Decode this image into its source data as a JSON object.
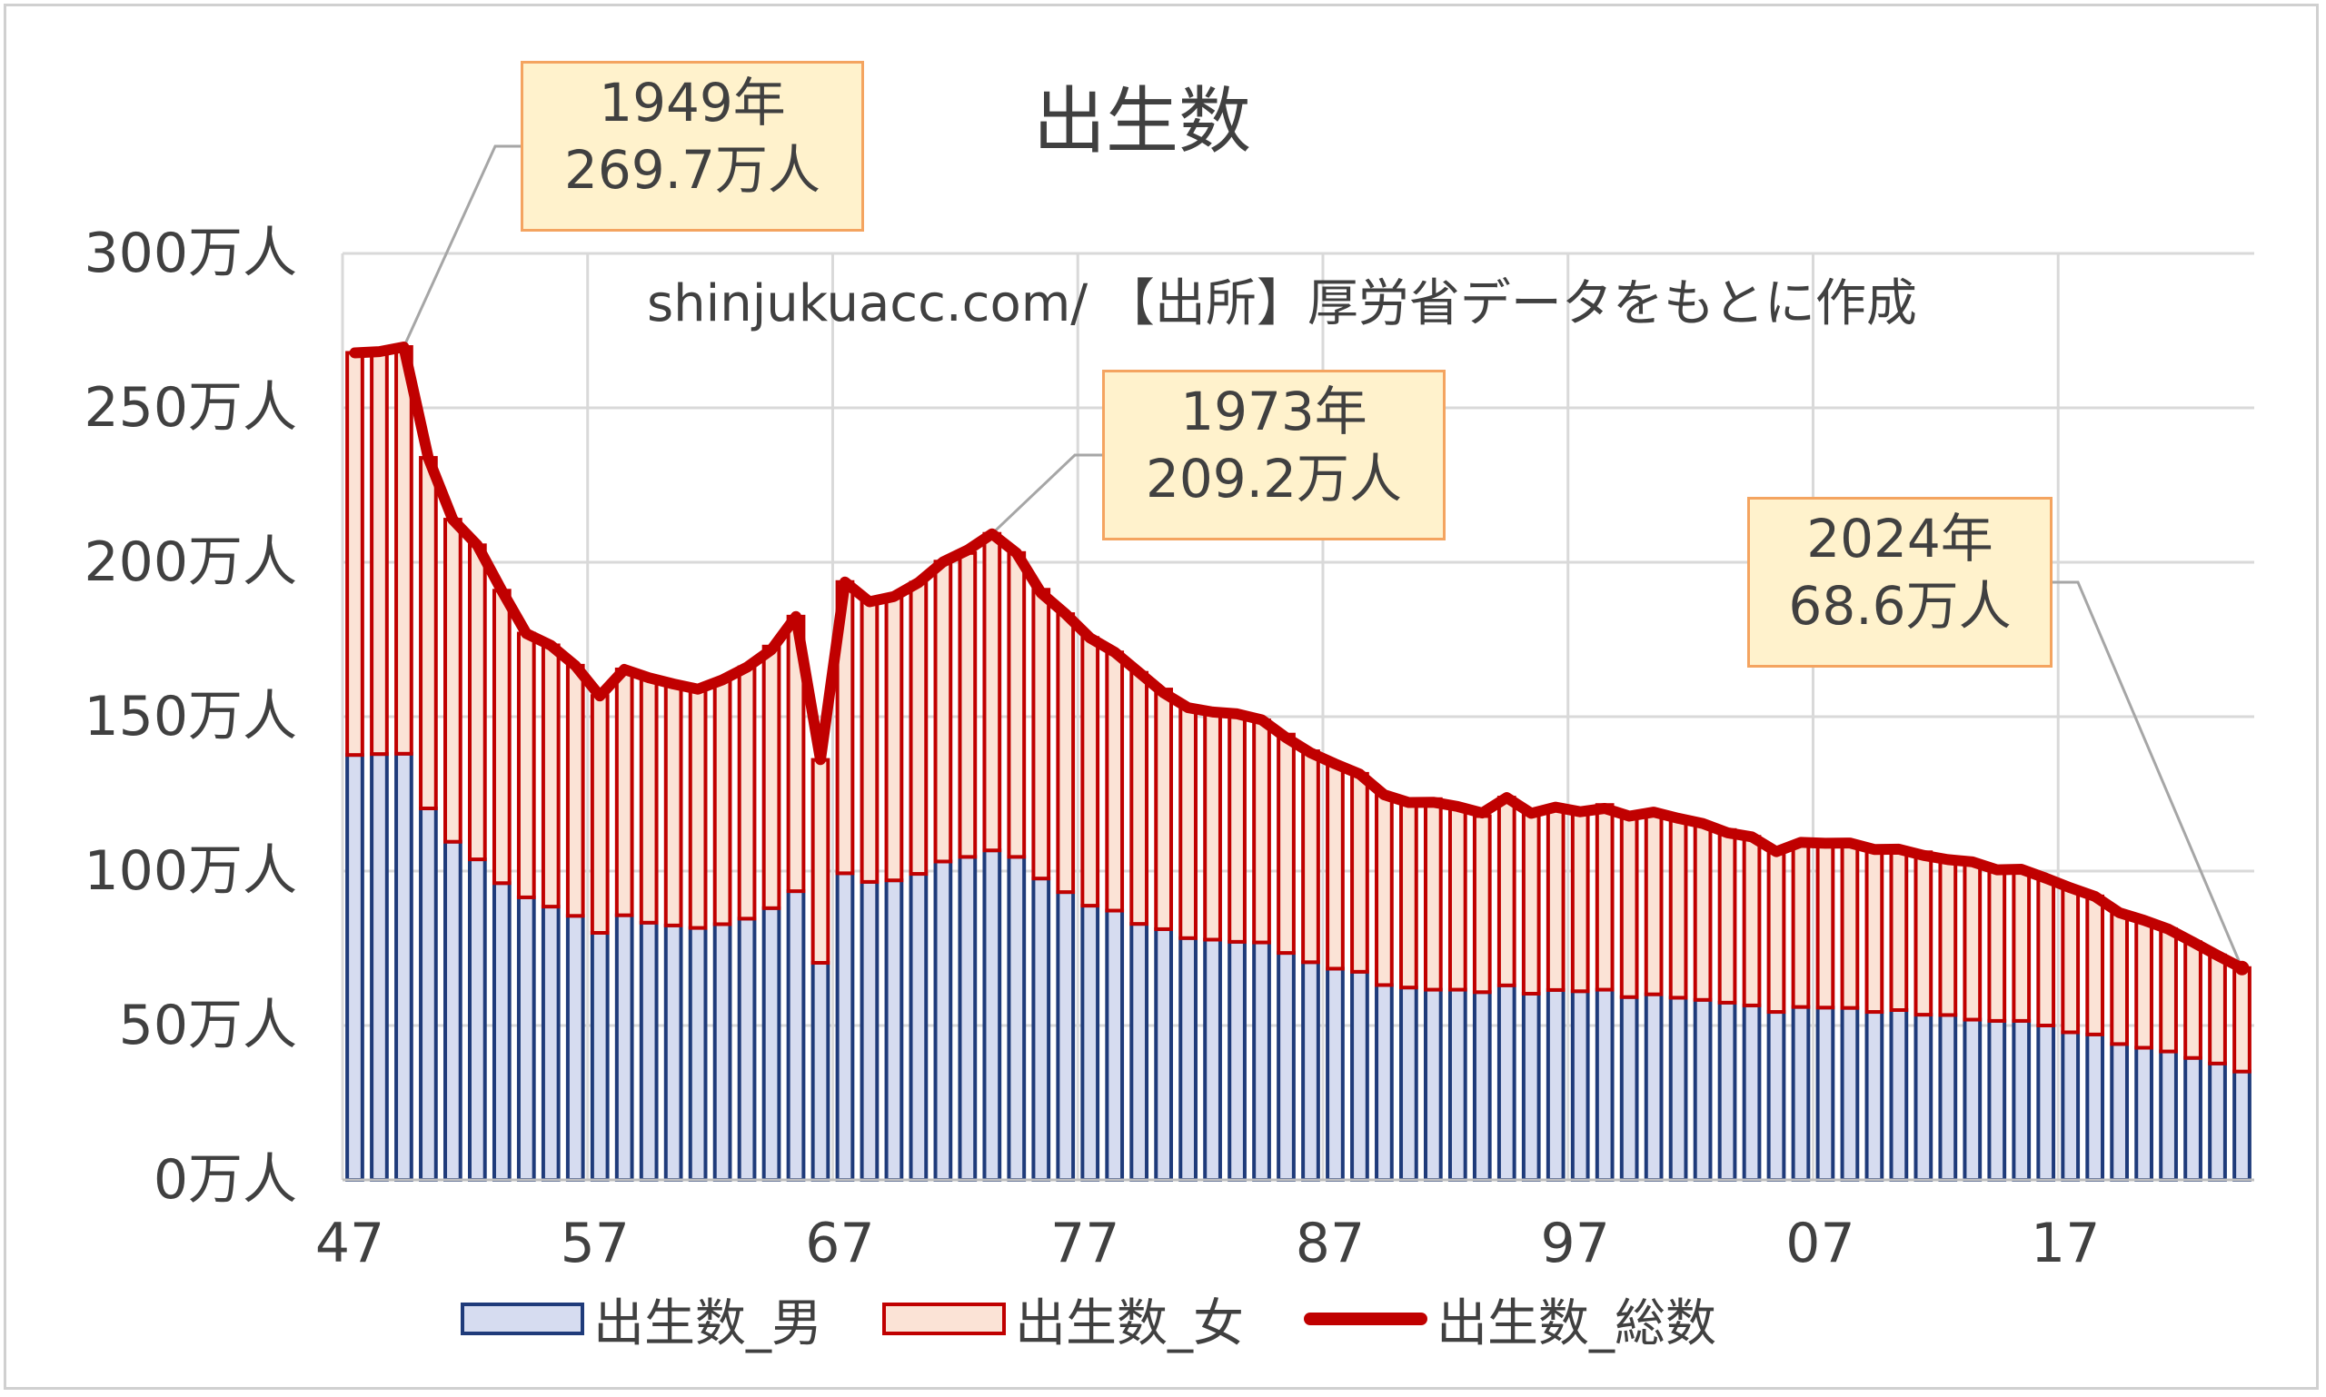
{
  "chart_data": {
    "type": "bar",
    "title": "出生数",
    "source_note": "shinjukuacc.com/ 【出所】厚労省データをもとに作成",
    "unit": "万人",
    "stacked": true,
    "x": [
      1947,
      1948,
      1949,
      1950,
      1951,
      1952,
      1953,
      1954,
      1955,
      1956,
      1957,
      1958,
      1959,
      1960,
      1961,
      1962,
      1963,
      1964,
      1965,
      1966,
      1967,
      1968,
      1969,
      1970,
      1971,
      1972,
      1973,
      1974,
      1975,
      1976,
      1977,
      1978,
      1979,
      1980,
      1981,
      1982,
      1983,
      1984,
      1985,
      1986,
      1987,
      1988,
      1989,
      1990,
      1991,
      1992,
      1993,
      1994,
      1995,
      1996,
      1997,
      1998,
      1999,
      2000,
      2001,
      2002,
      2003,
      2004,
      2005,
      2006,
      2007,
      2008,
      2009,
      2010,
      2011,
      2012,
      2013,
      2014,
      2015,
      2016,
      2017,
      2018,
      2019,
      2020,
      2021,
      2022,
      2023,
      2024
    ],
    "x_tick_values": [
      1947,
      1957,
      1967,
      1977,
      1987,
      1997,
      2007,
      2017
    ],
    "x_tick_labels": [
      "47",
      "57",
      "67",
      "77",
      "87",
      "97",
      "07",
      "17"
    ],
    "y_ticks": [
      0,
      50,
      100,
      150,
      200,
      250,
      300
    ],
    "y_tick_labels": [
      "0万人",
      "50万人",
      "100万人",
      "150万人",
      "200万人",
      "250万人",
      "300万人"
    ],
    "ylim": [
      0,
      300
    ],
    "grid": true,
    "legend_position": "bottom",
    "series": [
      {
        "name": "出生数_男",
        "type": "bar",
        "color": "#1f3b7a",
        "fill": "#d6dcf0",
        "values": [
          137.6,
          137.9,
          138.0,
          120.3,
          109.5,
          103.8,
          96.1,
          91.5,
          88.5,
          85.5,
          80.0,
          85.7,
          83.3,
          82.4,
          81.6,
          82.8,
          84.6,
          88.0,
          93.5,
          70.3,
          99.3,
          96.5,
          97.0,
          99.1,
          103.1,
          104.6,
          106.7,
          104.6,
          97.6,
          93.2,
          88.8,
          87.2,
          82.9,
          81.2,
          78.3,
          77.8,
          77.1,
          76.9,
          73.5,
          70.5,
          68.4,
          67.4,
          63.1,
          62.3,
          61.6,
          61.6,
          60.8,
          63.0,
          60.3,
          61.5,
          61.1,
          61.6,
          59.2,
          60.1,
          59.0,
          58.3,
          57.4,
          56.5,
          54.4,
          56.0,
          55.8,
          55.7,
          54.4,
          55.0,
          53.5,
          53.4,
          51.9,
          51.5,
          51.5,
          50.0,
          47.8,
          47.1,
          44.0,
          42.8,
          41.6,
          39.5,
          37.7,
          35.1
        ]
      },
      {
        "name": "出生数_女",
        "type": "bar",
        "color": "#c00000",
        "fill": "#fbe3d6",
        "values": [
          130.2,
          130.3,
          131.7,
          113.5,
          104.3,
          101.7,
          94.7,
          85.4,
          84.6,
          81.0,
          76.7,
          79.6,
          79.3,
          78.2,
          78.3,
          79.1,
          81.4,
          84.7,
          88.9,
          65.7,
          94.3,
          90.6,
          92.0,
          94.3,
          97.1,
          98.4,
          102.5,
          98.4,
          93.5,
          90.0,
          86.7,
          83.6,
          81.3,
          77.6,
          74.6,
          74.2,
          73.7,
          71.9,
          70.7,
          68.3,
          66.3,
          64.1,
          61.6,
          59.9,
          61.7,
          59.4,
          57.0,
          60.8,
          58.5,
          59.2,
          58.0,
          59.8,
          58.5,
          59.0,
          58.1,
          57.0,
          55.9,
          54.6,
          52.8,
          53.3,
          53.1,
          53.4,
          52.6,
          52.1,
          52.6,
          50.3,
          51.0,
          49.3,
          49.1,
          47.7,
          46.8,
          44.7,
          42.1,
          41.3,
          39.6,
          37.5,
          35.0,
          33.5
        ]
      },
      {
        "name": "出生数_総数",
        "type": "line",
        "color": "#c00000",
        "values": [
          267.8,
          268.2,
          269.7,
          233.8,
          213.8,
          205.5,
          190.8,
          176.9,
          173.1,
          166.5,
          156.7,
          165.3,
          162.6,
          160.6,
          158.9,
          161.9,
          166.0,
          171.7,
          182.4,
          136.1,
          193.6,
          187.2,
          188.9,
          193.4,
          200.1,
          203.9,
          209.2,
          203.0,
          190.1,
          183.3,
          175.5,
          170.9,
          164.3,
          157.7,
          152.9,
          151.5,
          150.9,
          149.0,
          143.2,
          138.3,
          134.7,
          131.4,
          124.7,
          122.2,
          122.3,
          120.9,
          118.8,
          123.8,
          118.7,
          120.7,
          119.2,
          120.3,
          117.8,
          119.1,
          117.1,
          115.4,
          112.4,
          111.1,
          106.3,
          109.3,
          109.0,
          109.1,
          107.0,
          107.1,
          105.1,
          103.7,
          103.0,
          100.4,
          100.6,
          97.7,
          94.6,
          91.8,
          86.5,
          84.1,
          81.2,
          77.0,
          72.7,
          68.6
        ]
      }
    ],
    "annotations": [
      {
        "year": 1949,
        "line1": "1949年",
        "line2": "269.7万人"
      },
      {
        "year": 1973,
        "line1": "1973年",
        "line2": "209.2万人"
      },
      {
        "year": 2024,
        "line1": "2024年",
        "line2": "68.6万人"
      }
    ]
  }
}
